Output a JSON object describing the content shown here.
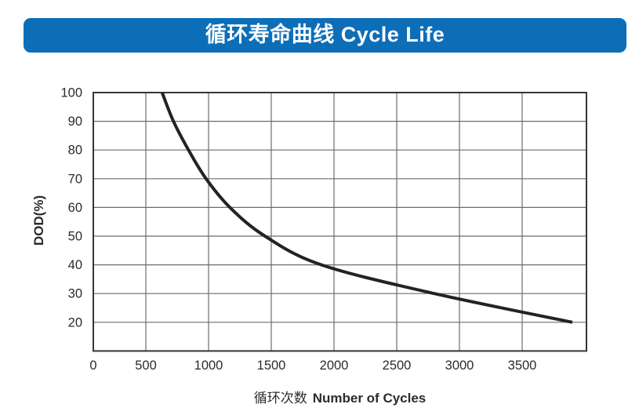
{
  "header": {
    "title": "循环寿命曲线 Cycle Life",
    "bg_color": "#0D6EB8",
    "text_color": "#FFFFFF"
  },
  "chart_data": {
    "type": "line",
    "title": "循环寿命曲线 Cycle Life",
    "xlabel": "循环次数 Number of Cycles",
    "xlabel_cjk": "循环次数",
    "xlabel_en": "Number of Cycles",
    "ylabel": "DOD(%)",
    "x_ticks": [
      0,
      500,
      1000,
      1500,
      2000,
      2500,
      3000,
      3500
    ],
    "y_ticks": [
      100,
      90,
      80,
      70,
      60,
      50,
      40,
      30,
      20
    ],
    "xlim": [
      0,
      4000
    ],
    "ylim": [
      10,
      100
    ],
    "grid": true,
    "legend": "none",
    "series": [
      {
        "name": "cycle-life-curve",
        "points": [
          {
            "cycles": 630,
            "dod": 100
          },
          {
            "cycles": 720,
            "dod": 90
          },
          {
            "cycles": 840,
            "dod": 80
          },
          {
            "cycles": 980,
            "dod": 70
          },
          {
            "cycles": 1170,
            "dod": 60
          },
          {
            "cycles": 1450,
            "dod": 50
          },
          {
            "cycles": 1900,
            "dod": 40
          },
          {
            "cycles": 2800,
            "dod": 30
          },
          {
            "cycles": 3900,
            "dod": 20
          }
        ]
      }
    ],
    "colors": {
      "curve": "#27211F",
      "grid": "#6F6B6B",
      "frame": "#3A3434",
      "label": "#302929"
    }
  }
}
